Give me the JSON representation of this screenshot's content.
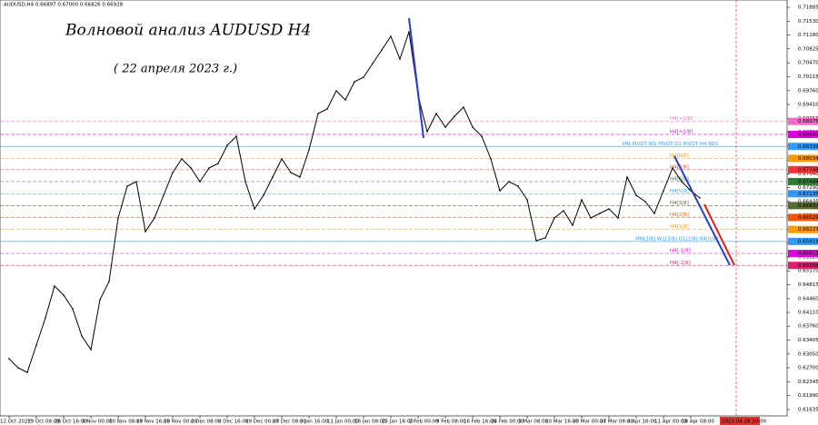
{
  "chart_data": {
    "type": "line",
    "header": "AUDUSD,H4  0.66897 0.67000 0.66826 0.66928",
    "title": "Волновой анализ AUDUSD H4",
    "subtitle": "( 22 апреля 2023 г.)",
    "color": "#000000",
    "values": [
      0.6293,
      0.62698,
      0.62583,
      0.63277,
      0.63971,
      0.64781,
      0.6455,
      0.64202,
      0.63508,
      0.63161,
      0.64434,
      0.64897,
      0.66516,
      0.67326,
      0.67442,
      0.66169,
      0.66516,
      0.67095,
      0.67673,
      0.68021,
      0.67789,
      0.67442,
      0.67789,
      0.67905,
      0.68368,
      0.68599,
      0.67442,
      0.66748,
      0.67095,
      0.67558,
      0.68021,
      0.67673,
      0.67558,
      0.68252,
      0.69178,
      0.69293,
      0.69756,
      0.69525,
      0.69987,
      0.70103,
      0.7045,
      0.70797,
      0.71144,
      0.70566,
      0.7126,
      0.6964,
      0.68715,
      0.69178,
      0.6883,
      0.69108,
      0.69339,
      0.6883,
      0.68599,
      0.68021,
      0.67211,
      0.67442,
      0.67326,
      0.66979,
      0.65938,
      0.66007,
      0.66516,
      0.66702,
      0.66331,
      0.66979,
      0.66516,
      0.66632,
      0.66748,
      0.66516,
      0.67558,
      0.67095,
      0.66933,
      0.66632,
      0.67211,
      0.67789,
      0.67442,
      0.67211,
      0.67026
    ],
    "xlim": [
      -1,
      85.6
    ],
    "xticks": [
      {
        "value": 0,
        "label": "12 Oct 2022"
      },
      {
        "value": 3,
        "label": "19 Oct 08:00"
      },
      {
        "value": 6,
        "label": "26 Oct 16:00"
      },
      {
        "value": 9,
        "label": "3 Nov 00:00"
      },
      {
        "value": 12,
        "label": "10 Nov 08:00"
      },
      {
        "value": 15,
        "label": "17 Nov 16:00"
      },
      {
        "value": 18,
        "label": "25 Nov 00:00"
      },
      {
        "value": 21,
        "label": "2 Dec 08:00"
      },
      {
        "value": 24,
        "label": "9 Dec 16:00"
      },
      {
        "value": 27,
        "label": "19 Dec 00:00"
      },
      {
        "value": 30,
        "label": "27 Dec 08:00"
      },
      {
        "value": 33,
        "label": "3 Jan 16:00"
      },
      {
        "value": 36,
        "label": "11 Jan 00:00"
      },
      {
        "value": 39,
        "label": "18 Jan 08:00"
      },
      {
        "value": 42,
        "label": "25 Jan 16:00"
      },
      {
        "value": 45,
        "label": "2 Feb 00:00"
      },
      {
        "value": 48,
        "label": "9 Feb 08:00"
      },
      {
        "value": 51,
        "label": "16 Feb 16:00"
      },
      {
        "value": 54,
        "label": "24 Feb 00:00"
      },
      {
        "value": 57,
        "label": "3 Mar 08:00"
      },
      {
        "value": 60,
        "label": "10 Mar 16:00"
      },
      {
        "value": 63,
        "label": "20 Mar 00:00"
      },
      {
        "value": 66,
        "label": "27 Mar 08:00"
      },
      {
        "value": 69,
        "label": "3 Apr 16:00"
      },
      {
        "value": 72,
        "label": "11 Apr 00:00"
      },
      {
        "value": 75,
        "label": "18 Apr 08:00"
      }
    ],
    "future_time": {
      "value": 80,
      "label": "2023.04.28 20:00",
      "color": "#e03030"
    },
    "ylim": [
      0.61473,
      0.7207
    ],
    "yticks": [
      {
        "value": 0.61635,
        "label": "0.61635"
      },
      {
        "value": 0.6199,
        "label": "0.61990"
      },
      {
        "value": 0.62345,
        "label": "0.62345"
      },
      {
        "value": 0.627,
        "label": "0.62700"
      },
      {
        "value": 0.6305,
        "label": "0.63050"
      },
      {
        "value": 0.63405,
        "label": "0.63405"
      },
      {
        "value": 0.6376,
        "label": "0.63760"
      },
      {
        "value": 0.6411,
        "label": "0.64110"
      },
      {
        "value": 0.6446,
        "label": "0.64460"
      },
      {
        "value": 0.64815,
        "label": "0.64815"
      },
      {
        "value": 0.6517,
        "label": "0.65170"
      },
      {
        "value": 0.6552,
        "label": "0.65520"
      },
      {
        "value": 0.65875,
        "label": "0.65875"
      },
      {
        "value": 0.6623,
        "label": "0.66230"
      },
      {
        "value": 0.6658,
        "label": "0.66580"
      },
      {
        "value": 0.66935,
        "label": "0.66935"
      },
      {
        "value": 0.6729,
        "label": "0.67290"
      },
      {
        "value": 0.6764,
        "label": "0.67640"
      },
      {
        "value": 0.67995,
        "label": "0.67995"
      },
      {
        "value": 0.6835,
        "label": "0.68350"
      },
      {
        "value": 0.687,
        "label": "0.68700"
      },
      {
        "value": 0.69055,
        "label": "0.69055"
      },
      {
        "value": 0.6941,
        "label": "0.69410"
      },
      {
        "value": 0.6976,
        "label": "0.69760"
      },
      {
        "value": 0.70115,
        "label": "0.70115"
      },
      {
        "value": 0.7047,
        "label": "0.70470"
      },
      {
        "value": 0.70825,
        "label": "0.70825"
      },
      {
        "value": 0.7118,
        "label": "0.71180"
      },
      {
        "value": 0.7153,
        "label": "0.71530"
      },
      {
        "value": 0.71885,
        "label": "0.71885"
      }
    ],
    "levels": [
      {
        "name": "H4[+2/8]",
        "value": 0.68976,
        "value_label": "0.68976",
        "color": "#ff66cc"
      },
      {
        "name": "H4[+1/8]",
        "value": 0.68645,
        "value_label": "0.68645",
        "color": "#e000e0"
      },
      {
        "name": "MN PIVOT W1 PIVOT D1 PIVOT H4 RES",
        "value": 0.68339,
        "value_label": "0.68339",
        "color": "#3399ff"
      },
      {
        "name": "H4[8/8]",
        "value": 0.68034,
        "value_label": "0.68034",
        "color": "#ff9900"
      },
      {
        "name": "H4[7/8]",
        "value": 0.67748,
        "value_label": "0.67748",
        "color": "#ff3333"
      },
      {
        "name": "H4[6/8]",
        "value": 0.67444,
        "value_label": "0.67444",
        "color": "#2e7d32"
      },
      {
        "name": "H4[5/8]",
        "value": 0.67135,
        "value_label": "0.67135",
        "color": "#3399ff"
      },
      {
        "name": "H4[3/8]",
        "value": 0.66832,
        "value_label": "0.66832",
        "color": "#556b2f"
      },
      {
        "name": "H4[2/8]",
        "value": 0.66529,
        "value_label": "0.66529",
        "color": "#ff5500"
      },
      {
        "name": "H4[1/8]",
        "value": 0.66223,
        "value_label": "0.66223",
        "color": "#ff9900"
      },
      {
        "name": "MN[3/8] W1[3/8] D1[2/8] H4[0/8]",
        "value": 0.65919,
        "value_label": "0.65919",
        "color": "#3399ff"
      },
      {
        "name": "H4[-1/8]",
        "value": 0.65613,
        "value_label": "0.65613",
        "color": "#e000e0"
      },
      {
        "name": "H4[-2/8]",
        "value": 0.65308,
        "value_label": "0.65308",
        "color": "#e0206a"
      }
    ],
    "drawings": [
      {
        "color": "#2a3fc4",
        "x": [
          44,
          45.6
        ],
        "y": [
          0.71607,
          0.68553
        ]
      },
      {
        "color": "#2a3fc4",
        "x": [
          73.2,
          79.3
        ],
        "y": [
          0.6809,
          0.65313
        ]
      },
      {
        "color": "#e02020",
        "x": [
          76.5,
          79.8
        ],
        "y": [
          0.66864,
          0.65313
        ]
      }
    ]
  }
}
